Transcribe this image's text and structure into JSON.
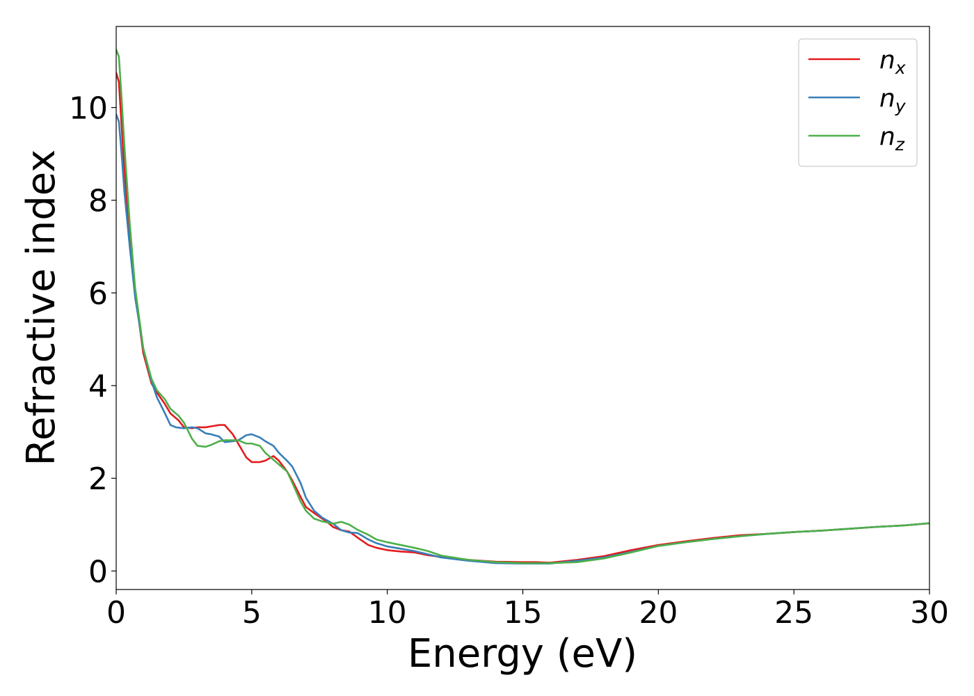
{
  "chart_data": {
    "type": "line",
    "title": "",
    "xlabel": "Energy (eV)",
    "ylabel": "Refractive index",
    "xlim": [
      0,
      30
    ],
    "ylim": [
      -0.4,
      11.75
    ],
    "xticks": [
      0,
      5,
      10,
      15,
      20,
      25,
      30
    ],
    "yticks": [
      0,
      2,
      4,
      6,
      8,
      10
    ],
    "grid": false,
    "legend_position": "top-right",
    "series": [
      {
        "name": "n",
        "subscript": "x",
        "color": "#e41a1c",
        "x": [
          0,
          0.1,
          0.2,
          0.3,
          0.5,
          0.7,
          1.0,
          1.3,
          1.5,
          1.8,
          2.0,
          2.3,
          2.5,
          2.8,
          3.0,
          3.3,
          3.5,
          3.8,
          4.0,
          4.3,
          4.5,
          4.8,
          5.0,
          5.3,
          5.5,
          5.8,
          6.0,
          6.3,
          6.5,
          6.8,
          7.0,
          7.3,
          7.8,
          8.0,
          8.3,
          8.6,
          9.0,
          9.3,
          9.6,
          10.0,
          10.5,
          11.0,
          11.5,
          12.0,
          13.0,
          14.0,
          15.0,
          15.5,
          16.0,
          17.0,
          18.0,
          19.0,
          20.0,
          21.0,
          22.0,
          23.0,
          24.0,
          25.0,
          26.0,
          27.0,
          28.0,
          29.0,
          30.0
        ],
        "y": [
          10.75,
          10.55,
          9.6,
          8.7,
          7.2,
          6.0,
          4.7,
          4.05,
          3.85,
          3.6,
          3.4,
          3.25,
          3.1,
          3.08,
          3.1,
          3.1,
          3.12,
          3.15,
          3.15,
          2.95,
          2.75,
          2.45,
          2.35,
          2.35,
          2.38,
          2.48,
          2.38,
          2.15,
          1.95,
          1.6,
          1.38,
          1.25,
          1.05,
          0.95,
          0.88,
          0.85,
          0.68,
          0.56,
          0.5,
          0.45,
          0.42,
          0.4,
          0.34,
          0.3,
          0.24,
          0.2,
          0.19,
          0.19,
          0.18,
          0.24,
          0.32,
          0.45,
          0.56,
          0.64,
          0.71,
          0.77,
          0.8,
          0.84,
          0.87,
          0.91,
          0.95,
          0.98,
          1.03
        ]
      },
      {
        "name": "n",
        "subscript": "y",
        "color": "#377eb8",
        "x": [
          0,
          0.1,
          0.2,
          0.3,
          0.5,
          0.7,
          1.0,
          1.3,
          1.5,
          1.8,
          2.0,
          2.2,
          2.5,
          2.8,
          3.0,
          3.3,
          3.5,
          3.8,
          4.0,
          4.3,
          4.5,
          4.8,
          5.0,
          5.3,
          5.5,
          5.8,
          6.0,
          6.3,
          6.5,
          6.8,
          7.0,
          7.3,
          7.6,
          8.0,
          8.3,
          8.6,
          8.9,
          9.3,
          9.6,
          10.0,
          10.5,
          11.0,
          11.5,
          12.0,
          13.0,
          14.0,
          15.0,
          16.0,
          17.0,
          18.0,
          19.0,
          20.0,
          21.0,
          22.0,
          23.0,
          24.0,
          25.0,
          26.0,
          27.0,
          28.0,
          29.0,
          30.0
        ],
        "y": [
          9.85,
          9.7,
          9.0,
          8.2,
          7.0,
          5.9,
          4.8,
          4.1,
          3.75,
          3.4,
          3.15,
          3.1,
          3.08,
          3.1,
          3.08,
          2.97,
          2.95,
          2.9,
          2.78,
          2.8,
          2.82,
          2.93,
          2.95,
          2.88,
          2.8,
          2.7,
          2.55,
          2.38,
          2.25,
          1.9,
          1.58,
          1.3,
          1.15,
          1.02,
          0.88,
          0.83,
          0.82,
          0.68,
          0.6,
          0.53,
          0.48,
          0.43,
          0.36,
          0.29,
          0.22,
          0.17,
          0.16,
          0.16,
          0.22,
          0.29,
          0.41,
          0.54,
          0.62,
          0.69,
          0.75,
          0.8,
          0.84,
          0.87,
          0.91,
          0.95,
          0.98,
          1.03
        ]
      },
      {
        "name": "n",
        "subscript": "z",
        "color": "#4daf4a",
        "x": [
          0,
          0.1,
          0.2,
          0.3,
          0.5,
          0.7,
          1.0,
          1.3,
          1.5,
          1.8,
          2.0,
          2.3,
          2.5,
          2.8,
          3.0,
          3.3,
          3.5,
          3.8,
          4.0,
          4.3,
          4.5,
          4.8,
          5.0,
          5.3,
          5.5,
          5.8,
          6.0,
          6.3,
          6.5,
          6.8,
          7.0,
          7.3,
          7.6,
          8.0,
          8.3,
          8.6,
          8.9,
          9.3,
          9.6,
          10.0,
          10.5,
          11.0,
          11.5,
          12.0,
          13.0,
          14.0,
          15.0,
          16.0,
          17.0,
          18.0,
          19.0,
          20.0,
          21.0,
          22.0,
          23.0,
          24.0,
          25.0,
          26.0,
          27.0,
          28.0,
          29.0,
          30.0
        ],
        "y": [
          11.25,
          11.1,
          10.2,
          9.2,
          7.5,
          6.1,
          4.8,
          4.15,
          3.9,
          3.7,
          3.5,
          3.35,
          3.2,
          2.85,
          2.7,
          2.68,
          2.72,
          2.8,
          2.82,
          2.82,
          2.82,
          2.75,
          2.75,
          2.7,
          2.55,
          2.4,
          2.3,
          2.15,
          1.9,
          1.5,
          1.3,
          1.13,
          1.07,
          1.02,
          1.06,
          1.0,
          0.89,
          0.78,
          0.68,
          0.62,
          0.56,
          0.5,
          0.43,
          0.33,
          0.24,
          0.19,
          0.17,
          0.17,
          0.19,
          0.27,
          0.4,
          0.54,
          0.62,
          0.69,
          0.75,
          0.8,
          0.84,
          0.87,
          0.91,
          0.95,
          0.98,
          1.03
        ]
      }
    ]
  }
}
